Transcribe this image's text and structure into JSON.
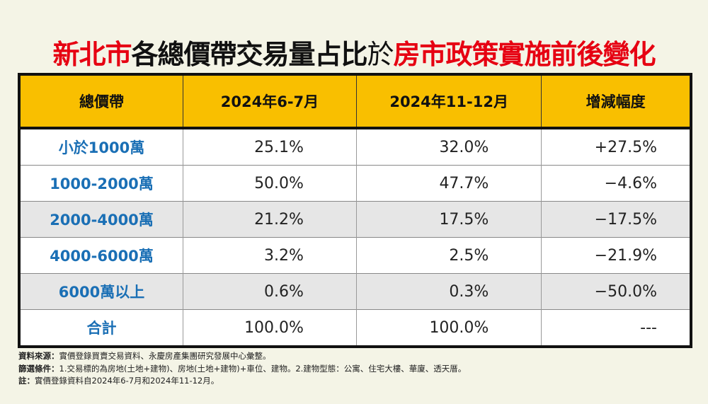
{
  "title": {
    "part1": "新北市",
    "part2": "各總價帶交易量占比",
    "part3": "於",
    "part4": "房市政策實施前後變化"
  },
  "table": {
    "headers": [
      "總價帶",
      "2024年6-7月",
      "2024年11-12月",
      "增減幅度"
    ],
    "rows": [
      [
        "小於1000萬",
        "25.1%",
        "32.0%",
        "+27.5%"
      ],
      [
        "1000-2000萬",
        "50.0%",
        "47.7%",
        "−4.6%"
      ],
      [
        "2000-4000萬",
        "21.2%",
        "17.5%",
        "−17.5%"
      ],
      [
        "4000-6000萬",
        "3.2%",
        "2.5%",
        "−21.9%"
      ],
      [
        "6000萬以上",
        "0.6%",
        "0.3%",
        "−50.0%"
      ],
      [
        "合計",
        "100.0%",
        "100.0%",
        "---"
      ]
    ]
  },
  "footer": [
    {
      "label": "資料來源：",
      "text": "實價登錄買賣交易資料、永慶房產集團研究發展中心彙整。"
    },
    {
      "label": "篩選條件：",
      "text": "1.交易標的為房地(土地+建物)、房地(土地+建物)+車位、建物。2.建物型態：公寓、住宅大樓、華廈、透天厝。"
    },
    {
      "label": "註：",
      "text": "實價登錄資料自2024年6-7月和2024年11-12月。"
    }
  ]
}
